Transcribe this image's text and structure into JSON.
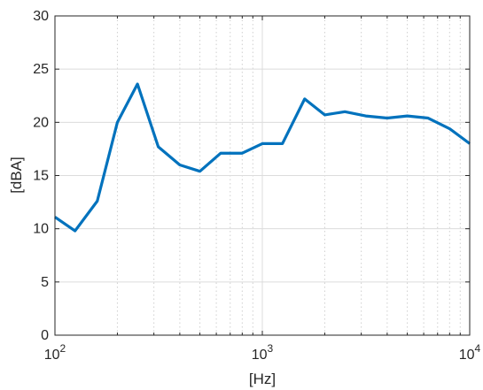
{
  "chart_data": {
    "type": "line",
    "xscale": "log",
    "xlim": [
      100,
      10000
    ],
    "ylim": [
      0,
      30
    ],
    "xlabel": "[Hz]",
    "ylabel": "[dBA]",
    "grid": true,
    "x_ticks": [
      100,
      1000,
      10000
    ],
    "x_tick_labels": [
      {
        "base": "10",
        "exp": "2"
      },
      {
        "base": "10",
        "exp": "3"
      },
      {
        "base": "10",
        "exp": "4"
      }
    ],
    "y_ticks": [
      0,
      5,
      10,
      15,
      20,
      25,
      30
    ],
    "y_tick_labels": [
      "0",
      "5",
      "10",
      "15",
      "20",
      "25",
      "30"
    ],
    "series": [
      {
        "color": "#0072BD",
        "x": [
          100,
          125,
          160,
          200,
          250,
          315,
          400,
          500,
          630,
          800,
          1000,
          1250,
          1600,
          2000,
          2500,
          3150,
          4000,
          5000,
          6300,
          8000,
          10000
        ],
        "y": [
          11.1,
          9.8,
          12.6,
          20.0,
          23.6,
          17.7,
          16.0,
          15.4,
          17.1,
          17.1,
          18.0,
          18.0,
          22.2,
          20.7,
          21.0,
          20.6,
          20.4,
          20.6,
          20.4,
          19.4,
          18.0
        ]
      }
    ]
  }
}
